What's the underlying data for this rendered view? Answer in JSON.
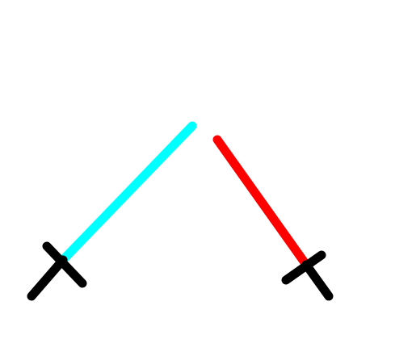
{
  "scene": {
    "background_color": "#ffffff",
    "hilt_color": "#000000",
    "sabers": [
      {
        "name": "left-saber",
        "blade_color": "#00ffff"
      },
      {
        "name": "right-saber",
        "blade_color": "#ff0000"
      }
    ]
  }
}
